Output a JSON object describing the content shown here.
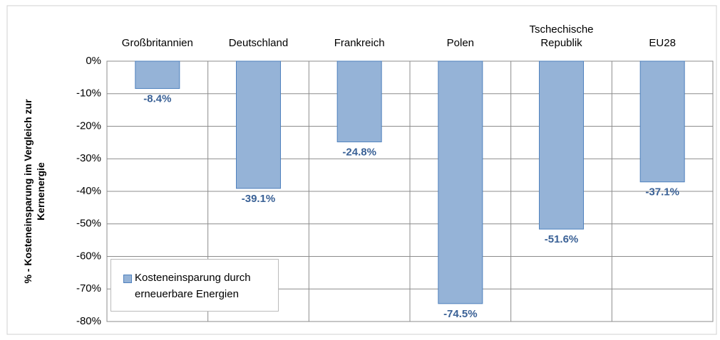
{
  "chart_data": {
    "type": "bar",
    "y_label": "% - Kosteneinsparung im Vergleich zur Kernenergie",
    "categories": [
      "Großbritannien",
      "Deutschland",
      "Frankreich",
      "Polen",
      "Tschechische Republik",
      "EU28"
    ],
    "series": [
      {
        "name": "Kosteneinsparung durch erneuerbare Energien",
        "color": "#95b3d7",
        "values": [
          -8.4,
          -39.1,
          -24.8,
          -74.5,
          -51.6,
          -37.1
        ],
        "value_labels": [
          "-8.4%",
          "-39.1%",
          "-24.8%",
          "-74.5%",
          "-51.6%",
          "-37.1%"
        ]
      }
    ],
    "ylim": [
      -80,
      0
    ],
    "yticks": [
      {
        "value": 0,
        "label": "0%"
      },
      {
        "value": -10,
        "label": "-10%"
      },
      {
        "value": -20,
        "label": "-20%"
      },
      {
        "value": -30,
        "label": "-30%"
      },
      {
        "value": -40,
        "label": "-40%"
      },
      {
        "value": -50,
        "label": "-50%"
      },
      {
        "value": -60,
        "label": "-60%"
      },
      {
        "value": -70,
        "label": "-70%"
      },
      {
        "value": -80,
        "label": "-80%"
      }
    ],
    "grid": true,
    "legend": "lower left"
  }
}
